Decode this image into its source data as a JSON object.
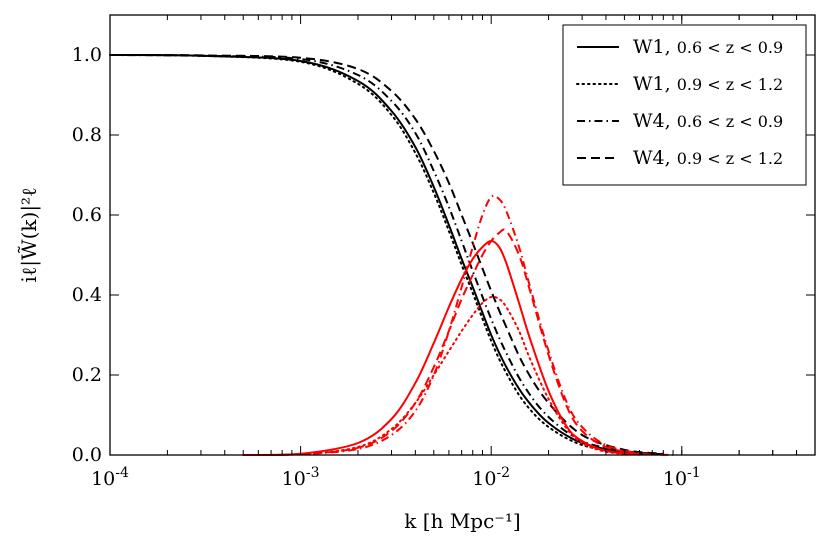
{
  "chart_data": {
    "type": "line",
    "xscale": "log",
    "xlim": [
      0.0001,
      0.5
    ],
    "ylim": [
      0.0,
      1.1
    ],
    "xlabel": "k [h Mpc⁻¹]",
    "ylabel": "iℓ|W̃(k)|²ℓ",
    "x_ticks": [
      {
        "value": 0.0001,
        "base": "10",
        "exp": "-4"
      },
      {
        "value": 0.001,
        "base": "10",
        "exp": "-3"
      },
      {
        "value": 0.01,
        "base": "10",
        "exp": "-2"
      },
      {
        "value": 0.1,
        "base": "10",
        "exp": "-1"
      }
    ],
    "y_ticks": [
      "0.0",
      "0.2",
      "0.4",
      "0.6",
      "0.8",
      "1.0"
    ],
    "grid": false,
    "legend": {
      "placement": "top-right",
      "entries": [
        {
          "field": "W1,",
          "range": "0.6 < z < 0.9",
          "style": "solid"
        },
        {
          "field": "W1,",
          "range": "0.9 < z < 1.2",
          "style": "dotted"
        },
        {
          "field": "W4,",
          "range": "0.6 < z < 0.9",
          "style": "dashdot"
        },
        {
          "field": "W4,",
          "range": "0.9 < z < 1.2",
          "style": "dashed"
        }
      ]
    },
    "series": [
      {
        "name": "W1, 0.6<z<0.9",
        "multipole": 0,
        "color": "#000000",
        "style": "solid",
        "x": [
          0.0001,
          0.0003,
          0.001,
          0.002,
          0.003,
          0.004,
          0.005,
          0.006,
          0.007,
          0.008,
          0.01,
          0.012,
          0.015,
          0.02,
          0.03,
          0.05,
          0.08
        ],
        "y": [
          1.0,
          0.998,
          0.985,
          0.935,
          0.86,
          0.77,
          0.67,
          0.575,
          0.49,
          0.42,
          0.3,
          0.22,
          0.145,
          0.08,
          0.03,
          0.008,
          0.002
        ]
      },
      {
        "name": "W1, 0.9<z<1.2",
        "multipole": 0,
        "color": "#000000",
        "style": "dotted",
        "x": [
          0.0001,
          0.0003,
          0.001,
          0.002,
          0.003,
          0.004,
          0.005,
          0.006,
          0.007,
          0.008,
          0.01,
          0.012,
          0.015,
          0.02,
          0.03,
          0.05,
          0.08
        ],
        "y": [
          1.0,
          0.998,
          0.983,
          0.928,
          0.85,
          0.755,
          0.655,
          0.56,
          0.475,
          0.405,
          0.285,
          0.205,
          0.13,
          0.07,
          0.025,
          0.006,
          0.001
        ]
      },
      {
        "name": "W4, 0.6<z<0.9",
        "multipole": 0,
        "color": "#000000",
        "style": "dashdot",
        "x": [
          0.0001,
          0.0003,
          0.001,
          0.002,
          0.003,
          0.004,
          0.005,
          0.006,
          0.007,
          0.008,
          0.01,
          0.012,
          0.015,
          0.02,
          0.03,
          0.05,
          0.08
        ],
        "y": [
          1.0,
          0.998,
          0.99,
          0.95,
          0.885,
          0.805,
          0.71,
          0.62,
          0.535,
          0.46,
          0.34,
          0.255,
          0.17,
          0.095,
          0.035,
          0.01,
          0.002
        ]
      },
      {
        "name": "W4, 0.9<z<1.2",
        "multipole": 0,
        "color": "#000000",
        "style": "dashed",
        "x": [
          0.0001,
          0.0003,
          0.001,
          0.002,
          0.003,
          0.004,
          0.005,
          0.006,
          0.007,
          0.008,
          0.01,
          0.012,
          0.015,
          0.02,
          0.03,
          0.05,
          0.08
        ],
        "y": [
          1.0,
          0.999,
          0.993,
          0.965,
          0.91,
          0.84,
          0.76,
          0.68,
          0.6,
          0.53,
          0.41,
          0.32,
          0.22,
          0.13,
          0.05,
          0.013,
          0.003
        ]
      },
      {
        "name": "W1, 0.6<z<0.9",
        "multipole": 2,
        "color": "#ff0000",
        "style": "solid",
        "x": [
          0.0005,
          0.001,
          0.002,
          0.003,
          0.004,
          0.005,
          0.006,
          0.007,
          0.008,
          0.009,
          0.01,
          0.011,
          0.012,
          0.014,
          0.016,
          0.02,
          0.025,
          0.03,
          0.04,
          0.06
        ],
        "y": [
          0.0,
          0.003,
          0.03,
          0.09,
          0.18,
          0.28,
          0.37,
          0.44,
          0.49,
          0.52,
          0.535,
          0.52,
          0.48,
          0.38,
          0.29,
          0.16,
          0.07,
          0.035,
          0.01,
          0.001
        ]
      },
      {
        "name": "W1, 0.9<z<1.2",
        "multipole": 2,
        "color": "#ff0000",
        "style": "dotted",
        "x": [
          0.0005,
          0.001,
          0.002,
          0.003,
          0.004,
          0.005,
          0.006,
          0.007,
          0.008,
          0.009,
          0.01,
          0.011,
          0.012,
          0.014,
          0.016,
          0.02,
          0.025,
          0.03,
          0.04,
          0.06
        ],
        "y": [
          0.0,
          0.002,
          0.02,
          0.065,
          0.13,
          0.2,
          0.26,
          0.31,
          0.35,
          0.38,
          0.395,
          0.39,
          0.37,
          0.31,
          0.24,
          0.14,
          0.065,
          0.03,
          0.008,
          0.001
        ]
      },
      {
        "name": "W4, 0.6<z<0.9",
        "multipole": 2,
        "color": "#ff0000",
        "style": "dashdot",
        "x": [
          0.0005,
          0.001,
          0.002,
          0.003,
          0.004,
          0.005,
          0.006,
          0.007,
          0.008,
          0.009,
          0.01,
          0.011,
          0.012,
          0.014,
          0.016,
          0.02,
          0.025,
          0.03,
          0.04,
          0.06,
          0.09
        ],
        "y": [
          0.0,
          0.002,
          0.015,
          0.05,
          0.11,
          0.2,
          0.31,
          0.42,
          0.52,
          0.6,
          0.645,
          0.64,
          0.61,
          0.52,
          0.42,
          0.26,
          0.13,
          0.07,
          0.025,
          0.004,
          0.0
        ]
      },
      {
        "name": "W4, 0.9<z<1.2",
        "multipole": 2,
        "color": "#ff0000",
        "style": "dashed",
        "x": [
          0.0005,
          0.001,
          0.002,
          0.003,
          0.004,
          0.005,
          0.006,
          0.007,
          0.008,
          0.009,
          0.01,
          0.011,
          0.012,
          0.014,
          0.016,
          0.02,
          0.025,
          0.03,
          0.04,
          0.06
        ],
        "y": [
          0.0,
          0.002,
          0.018,
          0.06,
          0.13,
          0.22,
          0.31,
          0.39,
          0.45,
          0.5,
          0.535,
          0.555,
          0.56,
          0.5,
          0.41,
          0.25,
          0.12,
          0.06,
          0.02,
          0.002
        ]
      }
    ]
  }
}
